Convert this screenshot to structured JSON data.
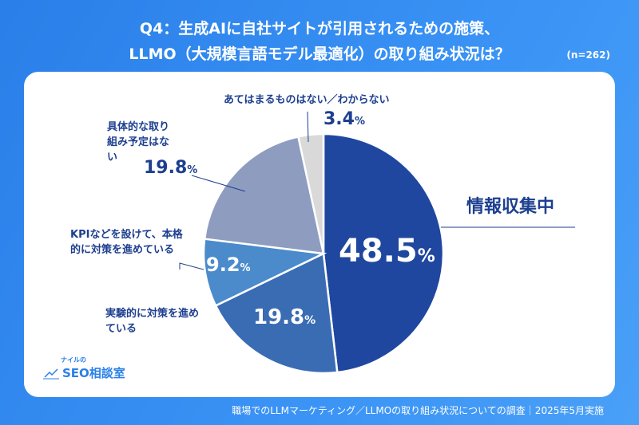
{
  "title_line1": "Q4：生成AIに自社サイトが引用されるための施策、",
  "title_line2": "LLMO（大規模言語モデル最適化）の取り組み状況は？",
  "sample": "(n=262)",
  "footer": "職場でのLLMマーケティング／LLMOの取り組み状況についての調査｜2025年5月実施",
  "logo": {
    "small": "ナイルの",
    "main": "SEO相談室"
  },
  "chart_data": {
    "type": "pie",
    "title": "Q4：生成AIに自社サイトが引用されるための施策、LLMO（大規模言語モデル最適化）の取り組み状況は？",
    "start": "top",
    "direction": "clockwise",
    "slices": [
      {
        "label": "情報収集中",
        "value": 48.5,
        "display": "48.5",
        "color": "#1f479f"
      },
      {
        "label": "実験的に対策を進めている",
        "value": 19.8,
        "display": "19.8",
        "color": "#3a6cb4"
      },
      {
        "label": "KPIなどを設けて、本格的に対策を進めている",
        "value": 9.2,
        "display": "9.2",
        "color": "#4b8bcb"
      },
      {
        "label": "具体的な取り組み予定はない",
        "value": 19.8,
        "display": "19.8",
        "color": "#8e9cbf"
      },
      {
        "label": "あてはまるものはない／わからない",
        "value": 3.4,
        "display": "3.4",
        "color": "#d9d9d9"
      }
    ],
    "unit": "%"
  }
}
